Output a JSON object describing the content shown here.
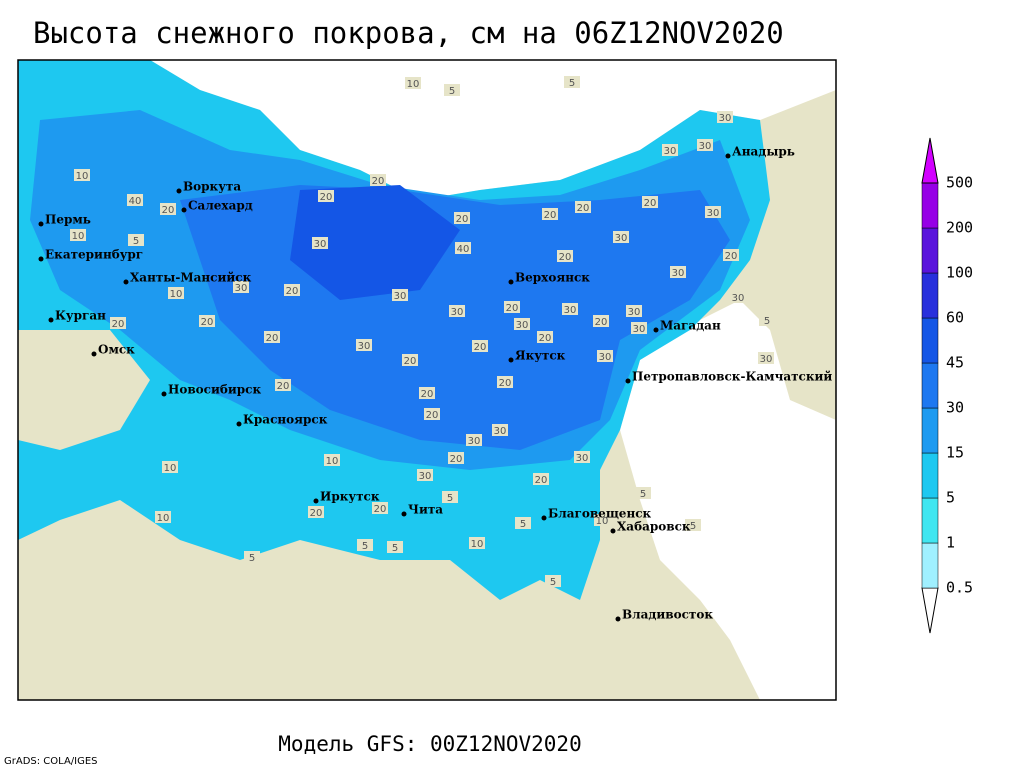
{
  "title": "Высота снежного покрова, см на 06Z12NOV2020",
  "cities": [
    "Воркута",
    "Салехард",
    "Пермь",
    "Екатеринбург",
    "Ханты-Мансийск",
    "Курган",
    "Омск",
    "Новосибирск",
    "Красноярск",
    "Иркутск",
    "Чита",
    "Верхоянск",
    "Якутск",
    "Магадан",
    "Петропавловск-Камчатский",
    "Анадырь",
    "Благовещенск",
    "Хабаровск",
    "Владивосток"
  ],
  "contour_labels": [
    10,
    5,
    5,
    30,
    30,
    30,
    10,
    40,
    20,
    10,
    5,
    30,
    10,
    20,
    20,
    20,
    30,
    30,
    20,
    20,
    40,
    20,
    20,
    20,
    20,
    30,
    30,
    20,
    30,
    30,
    30,
    20,
    30,
    30,
    20,
    20,
    30,
    30,
    20,
    20,
    20,
    30,
    20,
    20,
    30,
    30,
    20,
    30,
    20,
    10,
    10,
    20,
    30,
    5,
    10,
    5,
    5,
    10,
    5,
    5,
    20,
    30,
    30,
    5,
    20,
    10,
    20,
    5,
    5,
    5,
    20
  ],
  "legend": {
    "levels": [
      0.5,
      1,
      5,
      15,
      30,
      45,
      60,
      100,
      200,
      500
    ],
    "colors": [
      "#ffffff",
      "#a0f0ff",
      "#40e6f0",
      "#1ec8f0",
      "#1e9af0",
      "#1e78f0",
      "#1456e6",
      "#2830dc",
      "#5a14dc",
      "#9600e6",
      "#d200ff"
    ]
  },
  "footer": "Модель GFS: 00Z12NOV2020",
  "credit": "GrADS: COLA/IGES"
}
